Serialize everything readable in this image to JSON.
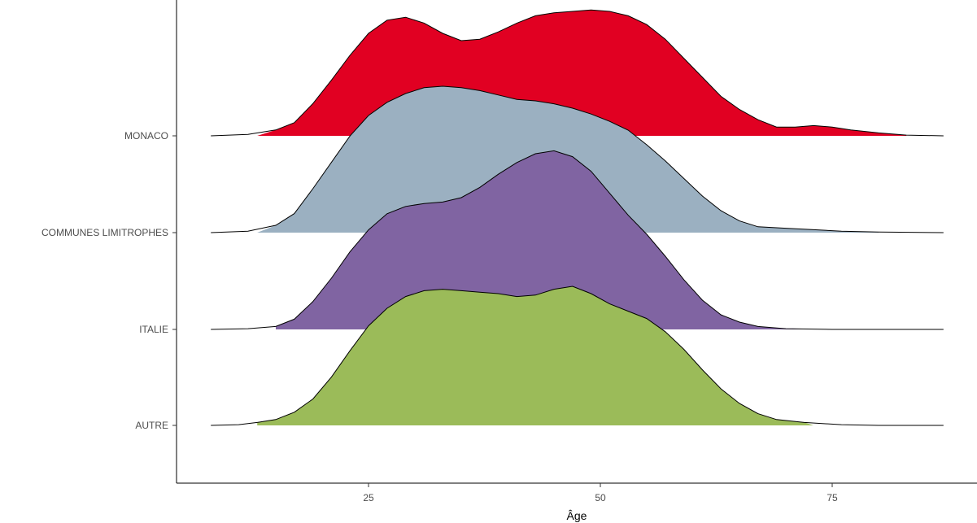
{
  "chart_data": {
    "type": "area",
    "subtype": "ridgeline",
    "title": "",
    "xlabel": "Âge",
    "ylabel": "",
    "xlim": [
      4,
      91
    ],
    "xticks": [
      25,
      50,
      75
    ],
    "grid": false,
    "legend": "none",
    "categories": [
      "MONACO",
      "COMMUNES LIMITROPHES",
      "ITALIE",
      "AUTRE"
    ],
    "series": [
      {
        "name": "MONACO",
        "color": "#E10022",
        "range": [
          8,
          87
        ],
        "fill_range": [
          13,
          83
        ],
        "points": [
          [
            8,
            0
          ],
          [
            12,
            0.01
          ],
          [
            15,
            0.04
          ],
          [
            17,
            0.09
          ],
          [
            19,
            0.22
          ],
          [
            21,
            0.38
          ],
          [
            23,
            0.55
          ],
          [
            25,
            0.7
          ],
          [
            27,
            0.79
          ],
          [
            29,
            0.81
          ],
          [
            31,
            0.77
          ],
          [
            33,
            0.7
          ],
          [
            35,
            0.65
          ],
          [
            37,
            0.66
          ],
          [
            39,
            0.71
          ],
          [
            41,
            0.77
          ],
          [
            43,
            0.82
          ],
          [
            45,
            0.84
          ],
          [
            47,
            0.85
          ],
          [
            49,
            0.86
          ],
          [
            51,
            0.85
          ],
          [
            53,
            0.82
          ],
          [
            55,
            0.76
          ],
          [
            57,
            0.66
          ],
          [
            59,
            0.53
          ],
          [
            61,
            0.4
          ],
          [
            63,
            0.27
          ],
          [
            65,
            0.18
          ],
          [
            67,
            0.11
          ],
          [
            69,
            0.06
          ],
          [
            71,
            0.06
          ],
          [
            73,
            0.07
          ],
          [
            75,
            0.06
          ],
          [
            77,
            0.04
          ],
          [
            80,
            0.02
          ],
          [
            83,
            0.005
          ],
          [
            87,
            0
          ]
        ]
      },
      {
        "name": "COMMUNES LIMITROPHES",
        "color": "#9BB0C1",
        "range": [
          8,
          87
        ],
        "fill_range": [
          13,
          80
        ],
        "points": [
          [
            8,
            0
          ],
          [
            12,
            0.01
          ],
          [
            15,
            0.05
          ],
          [
            17,
            0.13
          ],
          [
            19,
            0.3
          ],
          [
            21,
            0.48
          ],
          [
            23,
            0.66
          ],
          [
            25,
            0.8
          ],
          [
            27,
            0.89
          ],
          [
            29,
            0.95
          ],
          [
            31,
            0.99
          ],
          [
            33,
            1.0
          ],
          [
            35,
            0.99
          ],
          [
            37,
            0.97
          ],
          [
            39,
            0.94
          ],
          [
            41,
            0.91
          ],
          [
            43,
            0.9
          ],
          [
            45,
            0.88
          ],
          [
            47,
            0.85
          ],
          [
            49,
            0.81
          ],
          [
            51,
            0.76
          ],
          [
            53,
            0.7
          ],
          [
            55,
            0.6
          ],
          [
            57,
            0.49
          ],
          [
            59,
            0.37
          ],
          [
            61,
            0.25
          ],
          [
            63,
            0.15
          ],
          [
            65,
            0.08
          ],
          [
            67,
            0.04
          ],
          [
            70,
            0.03
          ],
          [
            73,
            0.02
          ],
          [
            76,
            0.01
          ],
          [
            80,
            0.004
          ],
          [
            87,
            0
          ]
        ]
      },
      {
        "name": "ITALIE",
        "color": "#8064A2",
        "range": [
          8,
          87
        ],
        "fill_range": [
          15,
          72
        ],
        "points": [
          [
            8,
            0
          ],
          [
            12,
            0.005
          ],
          [
            15,
            0.02
          ],
          [
            17,
            0.07
          ],
          [
            19,
            0.19
          ],
          [
            21,
            0.35
          ],
          [
            23,
            0.53
          ],
          [
            25,
            0.68
          ],
          [
            27,
            0.79
          ],
          [
            29,
            0.84
          ],
          [
            31,
            0.86
          ],
          [
            33,
            0.87
          ],
          [
            35,
            0.9
          ],
          [
            37,
            0.97
          ],
          [
            39,
            1.06
          ],
          [
            41,
            1.14
          ],
          [
            43,
            1.2
          ],
          [
            45,
            1.22
          ],
          [
            47,
            1.18
          ],
          [
            49,
            1.08
          ],
          [
            51,
            0.93
          ],
          [
            53,
            0.78
          ],
          [
            55,
            0.65
          ],
          [
            57,
            0.5
          ],
          [
            59,
            0.34
          ],
          [
            61,
            0.2
          ],
          [
            63,
            0.1
          ],
          [
            65,
            0.05
          ],
          [
            67,
            0.02
          ],
          [
            70,
            0.005
          ],
          [
            75,
            0
          ],
          [
            87,
            0
          ]
        ]
      },
      {
        "name": "AUTRE",
        "color": "#9BBB59",
        "range": [
          8,
          87
        ],
        "fill_range": [
          13,
          73
        ],
        "points": [
          [
            8,
            0
          ],
          [
            11,
            0.005
          ],
          [
            13,
            0.02
          ],
          [
            15,
            0.04
          ],
          [
            17,
            0.09
          ],
          [
            19,
            0.18
          ],
          [
            21,
            0.33
          ],
          [
            23,
            0.51
          ],
          [
            25,
            0.68
          ],
          [
            27,
            0.8
          ],
          [
            29,
            0.88
          ],
          [
            31,
            0.92
          ],
          [
            33,
            0.93
          ],
          [
            35,
            0.92
          ],
          [
            37,
            0.91
          ],
          [
            39,
            0.9
          ],
          [
            41,
            0.88
          ],
          [
            43,
            0.89
          ],
          [
            45,
            0.93
          ],
          [
            47,
            0.95
          ],
          [
            49,
            0.9
          ],
          [
            51,
            0.83
          ],
          [
            53,
            0.78
          ],
          [
            55,
            0.73
          ],
          [
            57,
            0.64
          ],
          [
            59,
            0.52
          ],
          [
            61,
            0.38
          ],
          [
            63,
            0.25
          ],
          [
            65,
            0.15
          ],
          [
            67,
            0.08
          ],
          [
            69,
            0.04
          ],
          [
            72,
            0.02
          ],
          [
            76,
            0.005
          ],
          [
            80,
            0
          ],
          [
            87,
            0
          ]
        ]
      }
    ]
  }
}
